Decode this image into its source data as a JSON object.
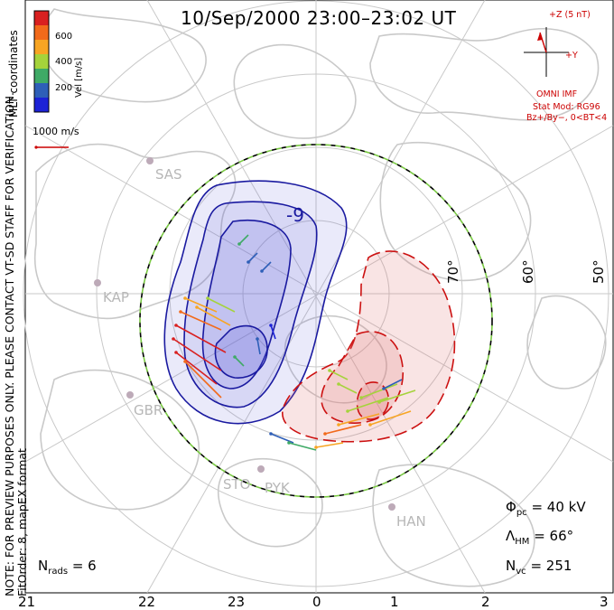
{
  "title": "10/Sep/2000 23:00–23:02 UT",
  "side_note": {
    "line1": "NOTE: FOR PREVIEW PURPOSES ONLY. PLEASE CONTACT VT-SD STAFF FOR VERIFICATION.",
    "line2": "FitOrder: 8, mapEX format"
  },
  "coordinates_label": "MLT coordinates",
  "colorbar": {
    "label": "Vel [m/s]",
    "ticks": [
      "600",
      "400",
      "200"
    ],
    "colors": [
      "#d92020",
      "#f26a1b",
      "#f7a523",
      "#a5d33b",
      "#3faa66",
      "#2e5fb8",
      "#1c22d6"
    ]
  },
  "reference_vector": {
    "label": "1000 m/s",
    "color": "#cc0000"
  },
  "imf": {
    "z_label": "+Z (5 nT)",
    "y_label": "+Y",
    "source": "OMNI IMF",
    "stat_mod": "Stat Mod: RG96",
    "condition": "Bz+/By−, 0<BT<4",
    "color": "#cc0000"
  },
  "contour_label": "-9",
  "latitude_labels": [
    "70°",
    "60°",
    "50°"
  ],
  "mlt_labels": [
    "21",
    "22",
    "23",
    "0",
    "1",
    "2",
    "3"
  ],
  "sites": [
    "SAS",
    "KAP",
    "GBR",
    "STO",
    "PYK",
    "HAN"
  ],
  "stats": {
    "phi_symbol": "Φ",
    "phi_sub": "pc",
    "phi_value": "= 40 kV",
    "lambda_symbol": "Λ",
    "lambda_sub": "HM",
    "lambda_value": "= 66°",
    "nvc_symbol": "N",
    "nvc_sub": "vc",
    "nvc_value": "= 251",
    "nrads_symbol": "N",
    "nrads_sub": "rads",
    "nrads_value": "= 6"
  },
  "convection_colors": {
    "dusk_cell": "#1a1aa0",
    "dawn_cell": "#cc1111",
    "boundary": "#7ac943"
  }
}
